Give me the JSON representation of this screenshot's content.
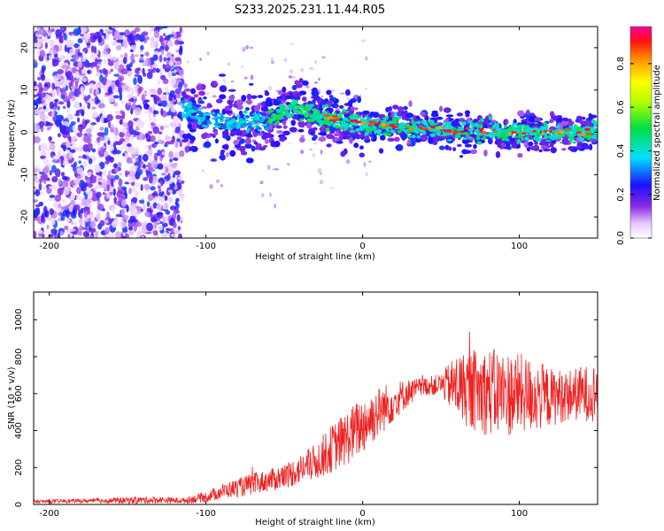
{
  "title": "S233.2025.231.11.44.R05",
  "chart_data": [
    {
      "type": "heatmap",
      "xlabel": "Height of straight line (km)",
      "ylabel": "Frequency (Hz)",
      "xlim": [
        -210,
        150
      ],
      "ylim": [
        -25,
        25
      ],
      "x_ticks": [
        -200,
        -100,
        0,
        100
      ],
      "y_ticks": [
        -20,
        -10,
        0,
        10,
        20
      ],
      "colorbar": {
        "label": "Normalized spectral amplitude",
        "range": [
          0,
          0.97
        ],
        "ticks": [
          0.0,
          0.2,
          0.4,
          0.6,
          0.8
        ]
      },
      "ridge": {
        "x": [
          -115,
          -100,
          -80,
          -60,
          -45,
          -30,
          -15,
          0,
          20,
          40,
          60,
          80,
          100,
          120,
          145
        ],
        "freq": [
          6,
          3,
          2,
          3,
          6,
          4,
          3,
          2,
          1.5,
          1,
          0.5,
          0,
          0,
          0,
          0
        ]
      },
      "noise_region_x": [
        -210,
        -115
      ]
    },
    {
      "type": "line",
      "xlabel": "Height of straight line (km)",
      "ylabel": "SNR (10 * v/v)",
      "xlim": [
        -210,
        150
      ],
      "ylim": [
        0,
        1150
      ],
      "x_ticks": [
        -200,
        -100,
        0,
        100
      ],
      "y_ticks": [
        0,
        200,
        400,
        600,
        800,
        1000
      ],
      "color": "#ee2222",
      "series": [
        {
          "name": "SNR",
          "x": [
            -210,
            -190,
            -170,
            -150,
            -130,
            -115,
            -100,
            -90,
            -80,
            -70,
            -60,
            -50,
            -40,
            -30,
            -20,
            -10,
            0,
            10,
            20,
            30,
            40,
            50,
            60,
            70,
            80,
            90,
            100,
            110,
            120,
            130,
            140,
            150
          ],
          "values": [
            15,
            18,
            20,
            22,
            25,
            20,
            40,
            70,
            90,
            110,
            130,
            150,
            190,
            230,
            300,
            360,
            430,
            500,
            560,
            610,
            640,
            650,
            640,
            620,
            610,
            600,
            600,
            590,
            580,
            590,
            600,
            610
          ],
          "spread": [
            10,
            10,
            12,
            20,
            18,
            15,
            30,
            40,
            50,
            60,
            60,
            70,
            80,
            100,
            130,
            150,
            160,
            140,
            110,
            70,
            50,
            60,
            180,
            220,
            240,
            240,
            220,
            200,
            160,
            140,
            150,
            160
          ]
        }
      ]
    }
  ]
}
